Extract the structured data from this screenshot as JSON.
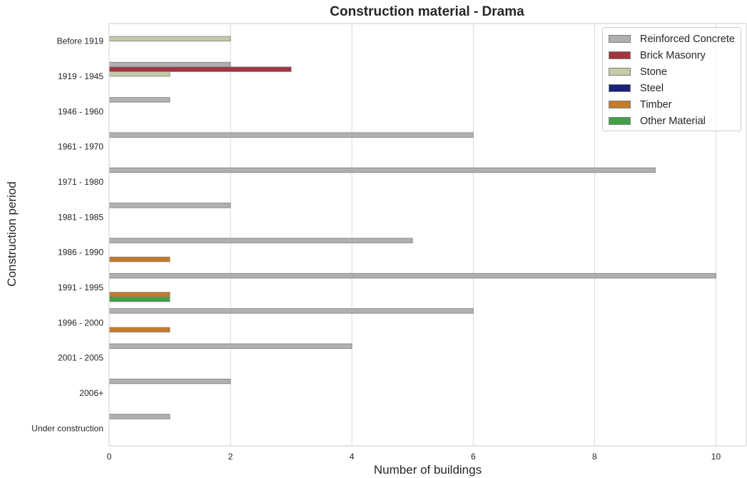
{
  "chart_data": {
    "type": "bar",
    "orientation": "horizontal",
    "title": "Construction material - Drama",
    "xlabel": "Number of buildings",
    "ylabel": "Construction period",
    "xlim": [
      0,
      10.5
    ],
    "xticks": [
      0,
      2,
      4,
      6,
      8,
      10
    ],
    "grid": true,
    "legend_position": "top-right",
    "categories": [
      "Before 1919",
      "1919 - 1945",
      "1946 - 1960",
      "1961 - 1970",
      "1971 - 1980",
      "1981 - 1985",
      "1986 - 1990",
      "1991 - 1995",
      "1996 - 2000",
      "2001 - 2005",
      "2006+",
      "Under construction"
    ],
    "series": [
      {
        "name": "Reinforced Concrete",
        "color": "#b0b0b0",
        "values": [
          0,
          2,
          1,
          6,
          9,
          2,
          5,
          10,
          6,
          4,
          2,
          1
        ]
      },
      {
        "name": "Brick Masonry",
        "color": "#a33540",
        "values": [
          0,
          3,
          0,
          0,
          0,
          0,
          0,
          0,
          0,
          0,
          0,
          0
        ]
      },
      {
        "name": "Stone",
        "color": "#c6caa6",
        "values": [
          2,
          1,
          0,
          0,
          0,
          0,
          0,
          0,
          0,
          0,
          0,
          0
        ]
      },
      {
        "name": "Steel",
        "color": "#1a1f7a",
        "values": [
          0,
          0,
          0,
          0,
          0,
          0,
          0,
          0,
          0,
          0,
          0,
          0
        ]
      },
      {
        "name": "Timber",
        "color": "#c77a26",
        "values": [
          0,
          0,
          0,
          0,
          0,
          0,
          1,
          1,
          1,
          0,
          0,
          0
        ]
      },
      {
        "name": "Other Material",
        "color": "#3fa247",
        "values": [
          0,
          0,
          0,
          0,
          0,
          0,
          0,
          1,
          0,
          0,
          0,
          0
        ]
      }
    ]
  }
}
